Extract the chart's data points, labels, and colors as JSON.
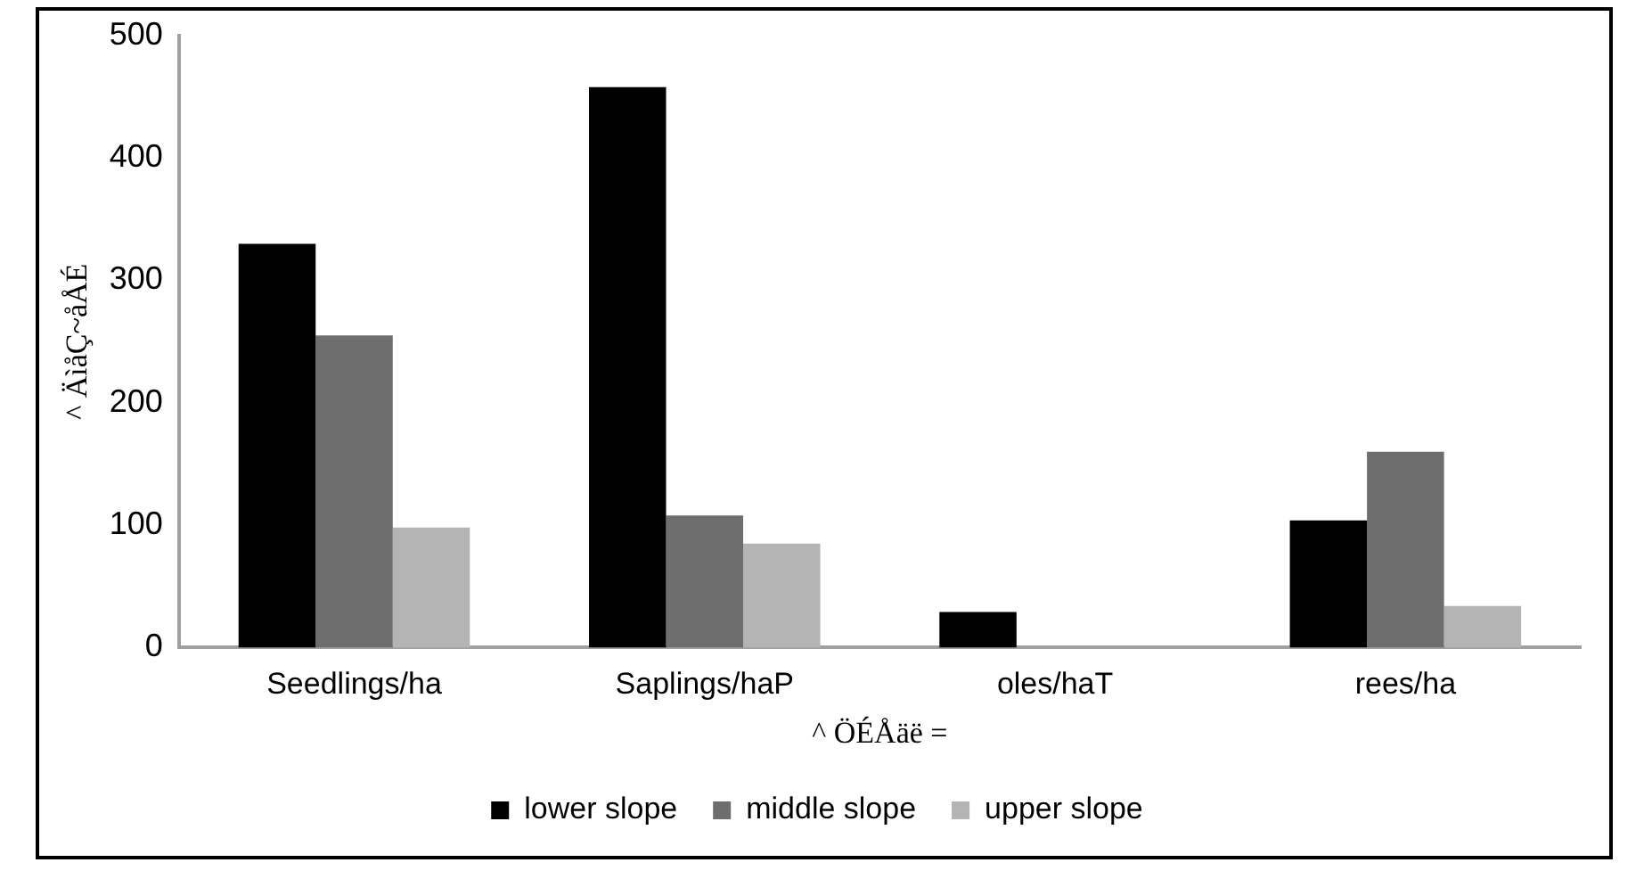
{
  "chart_data": {
    "type": "bar",
    "xlabel": "^ ÖÉÅäë =",
    "ylabel": "^ ÄìåÇ~åÅÉ",
    "categories": [
      "Seedlings/ha",
      "Saplings/haP",
      "oles/haT",
      "rees/ha"
    ],
    "series": [
      {
        "name": "lower slope",
        "color": "#000000",
        "values": [
          330,
          458,
          29,
          104
        ]
      },
      {
        "name": "middle slope",
        "color": "#6e6e6e",
        "values": [
          255,
          108,
          0,
          160
        ]
      },
      {
        "name": "upper slope",
        "color": "#b4b4b4",
        "values": [
          98,
          85,
          0,
          34
        ]
      }
    ],
    "ylim": [
      0,
      500
    ],
    "yticks": [
      0,
      100,
      200,
      300,
      400,
      500
    ],
    "grid": false,
    "legend": "bottom"
  }
}
